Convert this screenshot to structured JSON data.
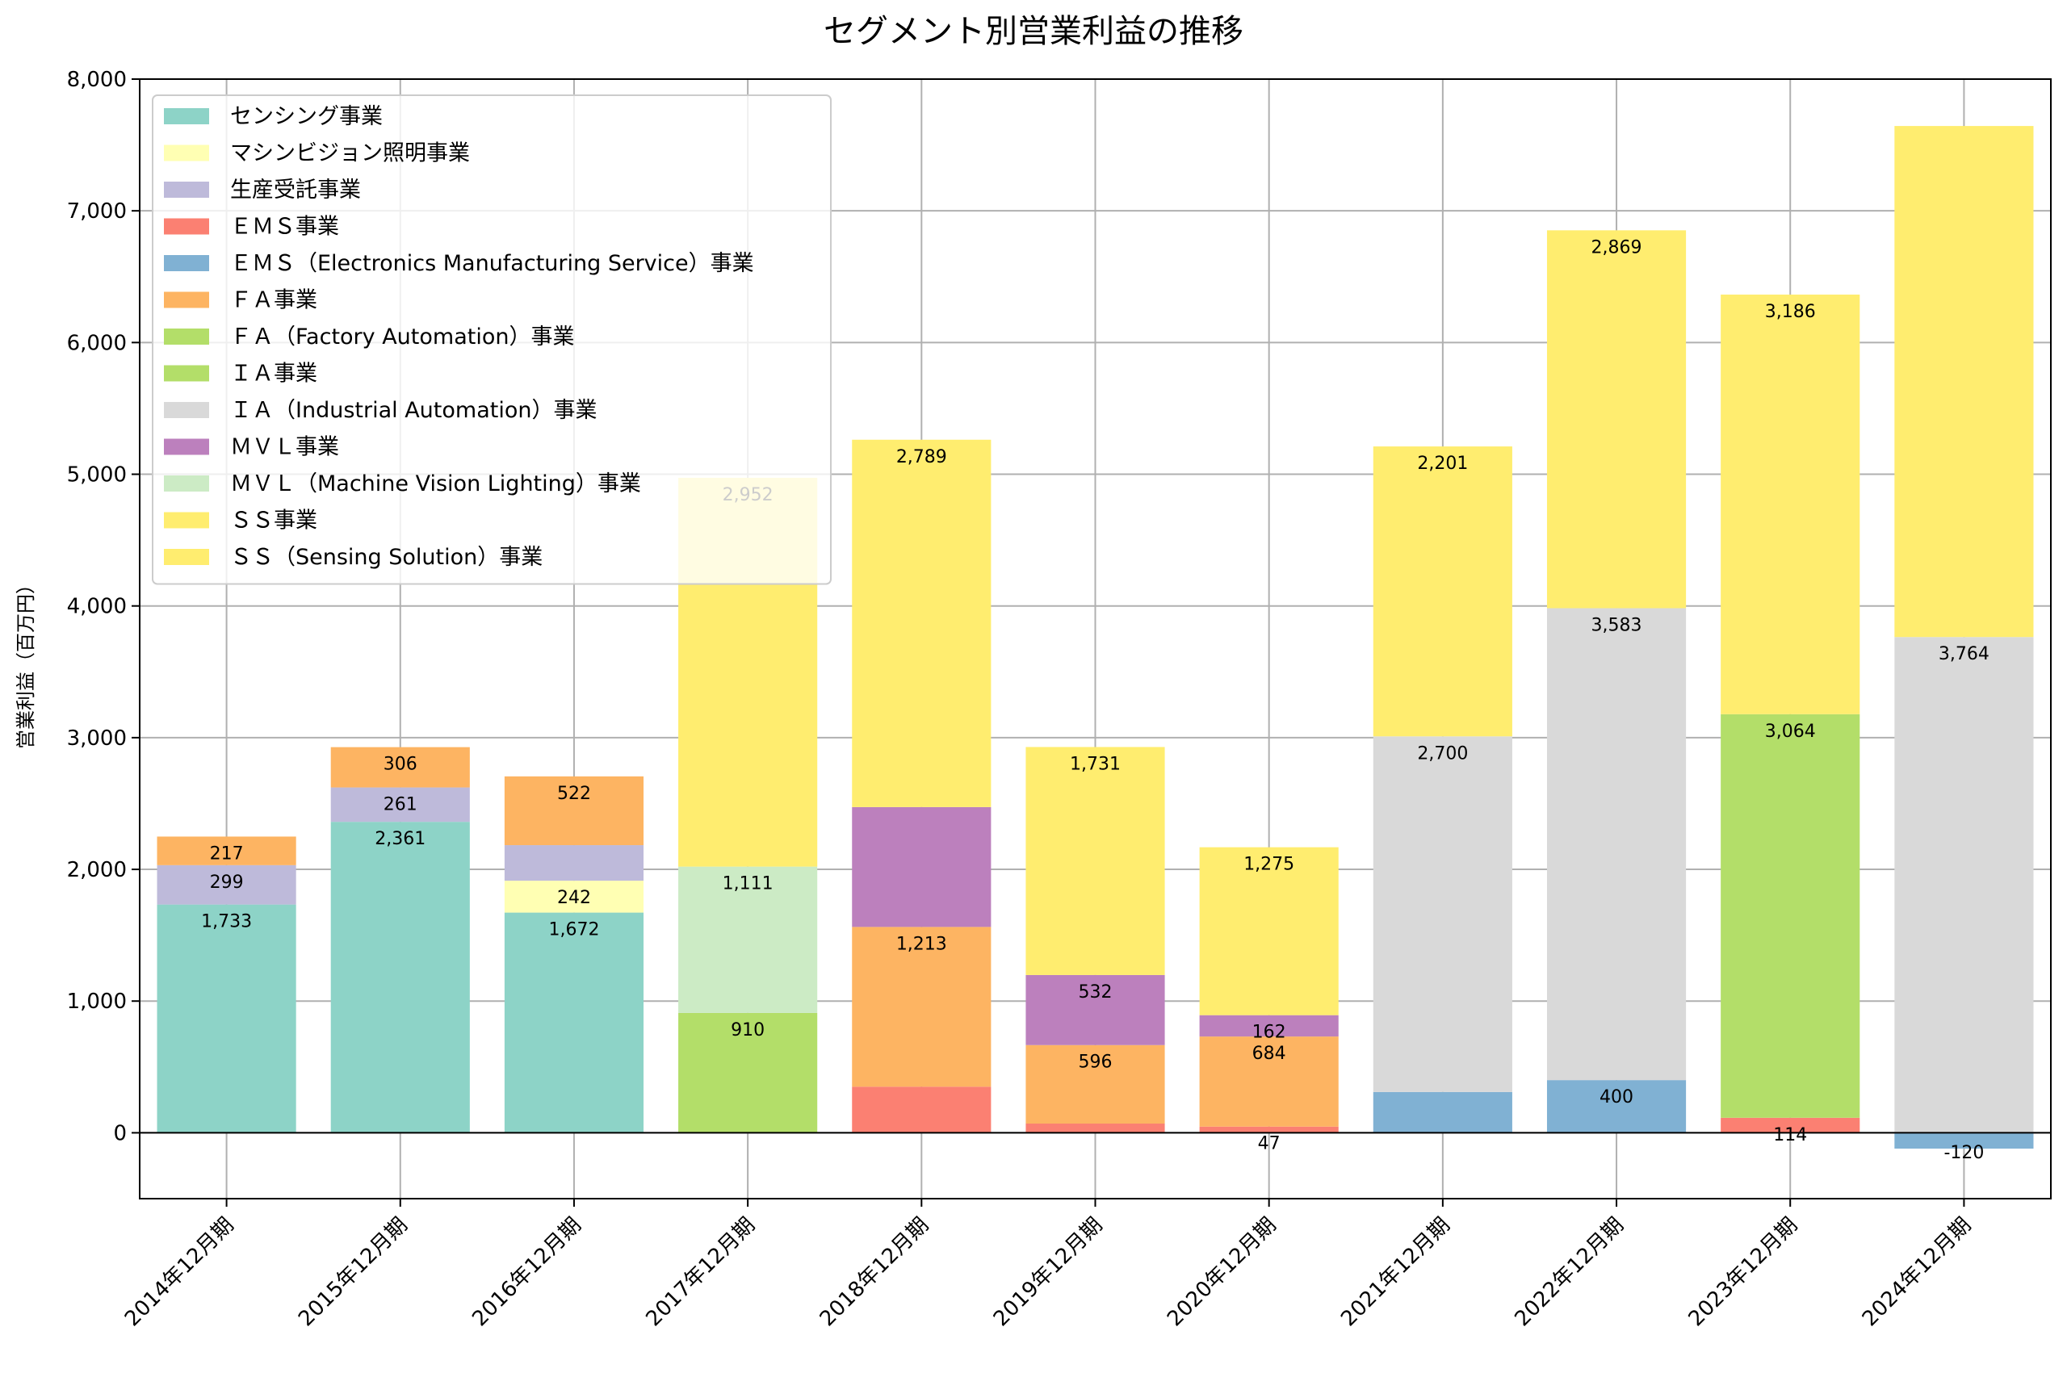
{
  "chart_data": {
    "type": "bar",
    "stacked": true,
    "title": "セグメント別営業利益の推移",
    "xlabel": "",
    "ylabel": "営業利益（百万円）",
    "ylim": [
      -500,
      8000
    ],
    "yticks": [
      0,
      1000,
      2000,
      3000,
      4000,
      5000,
      6000,
      7000,
      8000
    ],
    "ytick_labels": [
      "0",
      "1,000",
      "2,000",
      "3,000",
      "4,000",
      "5,000",
      "6,000",
      "7,000",
      "8,000"
    ],
    "grid": true,
    "legend_position": "top-left",
    "categories": [
      "2014年12月期",
      "2015年12月期",
      "2016年12月期",
      "2017年12月期",
      "2018年12月期",
      "2019年12月期",
      "2020年12月期",
      "2021年12月期",
      "2022年12月期",
      "2023年12月期",
      "2024年12月期"
    ],
    "series": [
      {
        "name": "センシング事業",
        "color": "#8dd3c7",
        "values": [
          1733,
          2361,
          1672,
          null,
          null,
          null,
          null,
          null,
          null,
          null,
          null
        ],
        "labels": [
          "1,733",
          "2,361",
          "1,672",
          "",
          "",
          "",
          "",
          "",
          "",
          "",
          ""
        ]
      },
      {
        "name": "マシンビジョン照明事業",
        "color": "#ffffb3",
        "values": [
          null,
          null,
          242,
          null,
          null,
          null,
          null,
          null,
          null,
          null,
          null
        ],
        "labels": [
          "",
          "",
          "242",
          "",
          "",
          "",
          "",
          "",
          "",
          "",
          ""
        ]
      },
      {
        "name": "生産受託事業",
        "color": "#bebada",
        "values": [
          299,
          261,
          270,
          null,
          null,
          null,
          null,
          null,
          null,
          null,
          null
        ],
        "labels": [
          "299",
          "261",
          "",
          "",
          "",
          "",
          "",
          "",
          "",
          "",
          ""
        ]
      },
      {
        "name": "ＥＭＳ事業",
        "color": "#fb8072",
        "values": [
          null,
          null,
          null,
          null,
          350,
          70,
          47,
          null,
          null,
          114,
          null
        ],
        "labels": [
          "",
          "",
          "",
          "",
          "",
          "",
          "47",
          "",
          "",
          "114",
          ""
        ]
      },
      {
        "name": "ＥＭＳ（Electronics Manufacturing Service）事業",
        "color": "#80b1d3",
        "values": [
          null,
          null,
          null,
          null,
          null,
          null,
          null,
          310,
          400,
          null,
          -120
        ],
        "labels": [
          "",
          "",
          "",
          "",
          "",
          "",
          "",
          "",
          "400",
          "",
          "-120"
        ]
      },
      {
        "name": "ＦＡ事業",
        "color": "#fdb462",
        "values": [
          217,
          306,
          522,
          null,
          1213,
          596,
          684,
          null,
          null,
          null,
          null
        ],
        "labels": [
          "217",
          "306",
          "522",
          "",
          "1,213",
          "596",
          "684",
          "",
          "",
          "",
          ""
        ]
      },
      {
        "name": "ＦＡ（Factory Automation）事業",
        "color": "#b3de69",
        "values": [
          null,
          null,
          null,
          910,
          null,
          null,
          null,
          null,
          null,
          null,
          null
        ],
        "labels": [
          "",
          "",
          "",
          "910",
          "",
          "",
          "",
          "",
          "",
          "",
          ""
        ]
      },
      {
        "name": "ＩＡ事業",
        "color": "#b3de69",
        "values": [
          null,
          null,
          null,
          null,
          null,
          null,
          null,
          null,
          null,
          3064,
          null
        ],
        "labels": [
          "",
          "",
          "",
          "",
          "",
          "",
          "",
          "",
          "",
          "3,064",
          ""
        ]
      },
      {
        "name": "ＩＡ（Industrial Automation）事業",
        "color": "#d9d9d9",
        "values": [
          null,
          null,
          null,
          null,
          null,
          null,
          null,
          2700,
          3583,
          null,
          3764
        ],
        "labels": [
          "",
          "",
          "",
          "",
          "",
          "",
          "",
          "2,700",
          "3,583",
          "",
          "3,764"
        ]
      },
      {
        "name": "ＭＶＬ事業",
        "color": "#bc80bd",
        "values": [
          null,
          null,
          null,
          null,
          910,
          532,
          162,
          null,
          null,
          null,
          null
        ],
        "labels": [
          "",
          "",
          "",
          "",
          "",
          "532",
          "162",
          "",
          "",
          "",
          ""
        ]
      },
      {
        "name": "ＭＶＬ（Machine Vision Lighting）事業",
        "color": "#ccebc5",
        "values": [
          null,
          null,
          null,
          1111,
          null,
          null,
          null,
          null,
          null,
          null,
          null
        ],
        "labels": [
          "",
          "",
          "",
          "1,111",
          "",
          "",
          "",
          "",
          "",
          "",
          ""
        ]
      },
      {
        "name": "ＳＳ事業",
        "color": "#ffed6f",
        "values": [
          null,
          null,
          null,
          null,
          null,
          null,
          null,
          null,
          null,
          3186,
          3880
        ],
        "labels": [
          "",
          "",
          "",
          "",
          "",
          "",
          "",
          "",
          "",
          "3,186",
          ""
        ]
      },
      {
        "name": "ＳＳ（Sensing Solution）事業",
        "color": "#ffed6f",
        "values": [
          null,
          null,
          null,
          2952,
          2789,
          1731,
          1275,
          2201,
          2869,
          null,
          null
        ],
        "labels": [
          "",
          "",
          "",
          "2,952",
          "2,789",
          "1,731",
          "1,275",
          "2,201",
          "2,869",
          "",
          ""
        ]
      }
    ]
  }
}
